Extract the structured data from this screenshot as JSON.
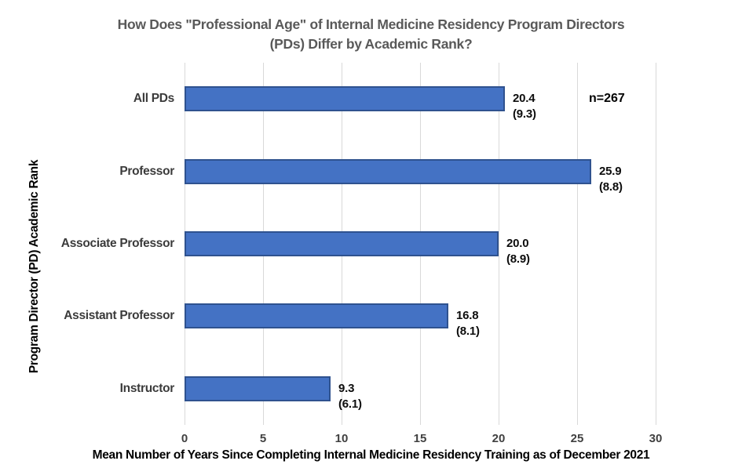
{
  "title": {
    "lines": [
      "How Does \"Professional Age\" of Internal Medicine Residency Program Directors",
      "(PDs) Differ by Academic Rank?"
    ],
    "color": "#595959"
  },
  "annotation": {
    "n_label": "n=267"
  },
  "axes": {
    "x_title": "Mean Number of Years Since Completing Internal Medicine Residency Training as of December 2021",
    "y_title": "Program Director (PD) Academic Rank"
  },
  "colors": {
    "bar_fill": "#4472C4",
    "bar_border": "#2F528F",
    "gridline": "#D9D9D9",
    "title_text": "#595959",
    "tick_text": "#404040",
    "label_text": "#0D0D0D"
  },
  "chart_data": {
    "type": "bar",
    "orientation": "horizontal",
    "title": "How Does \"Professional Age\" of Internal Medicine Residency Program Directors (PDs) Differ by Academic Rank?",
    "categories": [
      "All PDs",
      "Professor",
      "Associate Professor",
      "Assistant Professor",
      "Instructor"
    ],
    "values": [
      20.4,
      25.9,
      20.0,
      16.8,
      9.3
    ],
    "sd_values": [
      9.3,
      8.8,
      8.9,
      8.1,
      6.1
    ],
    "annotation": "n=267",
    "n": 267,
    "xlabel": "Mean Number of Years Since Completing Internal Medicine Residency Training as of December 2021",
    "ylabel": "Program Director (PD) Academic Rank",
    "xlim": [
      0,
      30
    ],
    "xticks": [
      0,
      5,
      10,
      15,
      20,
      25,
      30
    ],
    "grid": true,
    "legend": false
  }
}
